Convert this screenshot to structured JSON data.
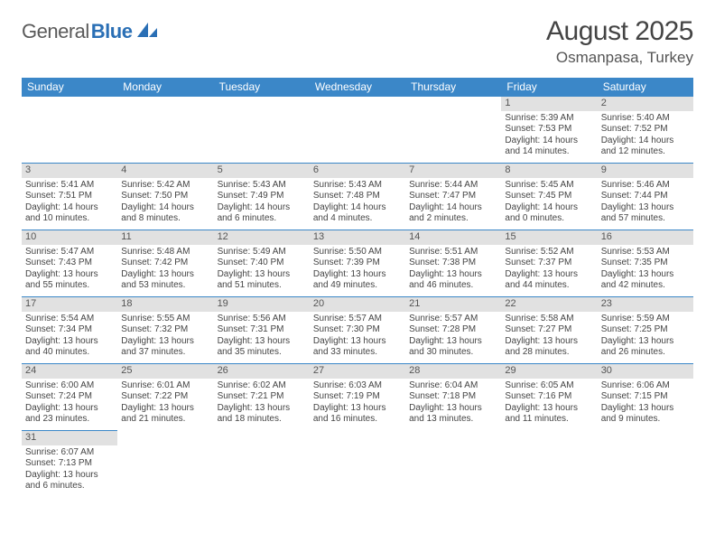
{
  "logo": {
    "part1": "General",
    "part2": "Blue"
  },
  "title": {
    "month": "August 2025",
    "location": "Osmanpasa, Turkey"
  },
  "colors": {
    "header_bg": "#3b87c8",
    "header_text": "#ffffff",
    "daynum_bg": "#e1e1e1",
    "border": "#3b87c8",
    "logo_gray": "#5a5a5a",
    "logo_blue": "#2a6fb5"
  },
  "weekdays": [
    "Sunday",
    "Monday",
    "Tuesday",
    "Wednesday",
    "Thursday",
    "Friday",
    "Saturday"
  ],
  "weeks": [
    [
      null,
      null,
      null,
      null,
      null,
      {
        "n": "1",
        "sr": "Sunrise: 5:39 AM",
        "ss": "Sunset: 7:53 PM",
        "d1": "Daylight: 14 hours",
        "d2": "and 14 minutes."
      },
      {
        "n": "2",
        "sr": "Sunrise: 5:40 AM",
        "ss": "Sunset: 7:52 PM",
        "d1": "Daylight: 14 hours",
        "d2": "and 12 minutes."
      }
    ],
    [
      {
        "n": "3",
        "sr": "Sunrise: 5:41 AM",
        "ss": "Sunset: 7:51 PM",
        "d1": "Daylight: 14 hours",
        "d2": "and 10 minutes."
      },
      {
        "n": "4",
        "sr": "Sunrise: 5:42 AM",
        "ss": "Sunset: 7:50 PM",
        "d1": "Daylight: 14 hours",
        "d2": "and 8 minutes."
      },
      {
        "n": "5",
        "sr": "Sunrise: 5:43 AM",
        "ss": "Sunset: 7:49 PM",
        "d1": "Daylight: 14 hours",
        "d2": "and 6 minutes."
      },
      {
        "n": "6",
        "sr": "Sunrise: 5:43 AM",
        "ss": "Sunset: 7:48 PM",
        "d1": "Daylight: 14 hours",
        "d2": "and 4 minutes."
      },
      {
        "n": "7",
        "sr": "Sunrise: 5:44 AM",
        "ss": "Sunset: 7:47 PM",
        "d1": "Daylight: 14 hours",
        "d2": "and 2 minutes."
      },
      {
        "n": "8",
        "sr": "Sunrise: 5:45 AM",
        "ss": "Sunset: 7:45 PM",
        "d1": "Daylight: 14 hours",
        "d2": "and 0 minutes."
      },
      {
        "n": "9",
        "sr": "Sunrise: 5:46 AM",
        "ss": "Sunset: 7:44 PM",
        "d1": "Daylight: 13 hours",
        "d2": "and 57 minutes."
      }
    ],
    [
      {
        "n": "10",
        "sr": "Sunrise: 5:47 AM",
        "ss": "Sunset: 7:43 PM",
        "d1": "Daylight: 13 hours",
        "d2": "and 55 minutes."
      },
      {
        "n": "11",
        "sr": "Sunrise: 5:48 AM",
        "ss": "Sunset: 7:42 PM",
        "d1": "Daylight: 13 hours",
        "d2": "and 53 minutes."
      },
      {
        "n": "12",
        "sr": "Sunrise: 5:49 AM",
        "ss": "Sunset: 7:40 PM",
        "d1": "Daylight: 13 hours",
        "d2": "and 51 minutes."
      },
      {
        "n": "13",
        "sr": "Sunrise: 5:50 AM",
        "ss": "Sunset: 7:39 PM",
        "d1": "Daylight: 13 hours",
        "d2": "and 49 minutes."
      },
      {
        "n": "14",
        "sr": "Sunrise: 5:51 AM",
        "ss": "Sunset: 7:38 PM",
        "d1": "Daylight: 13 hours",
        "d2": "and 46 minutes."
      },
      {
        "n": "15",
        "sr": "Sunrise: 5:52 AM",
        "ss": "Sunset: 7:37 PM",
        "d1": "Daylight: 13 hours",
        "d2": "and 44 minutes."
      },
      {
        "n": "16",
        "sr": "Sunrise: 5:53 AM",
        "ss": "Sunset: 7:35 PM",
        "d1": "Daylight: 13 hours",
        "d2": "and 42 minutes."
      }
    ],
    [
      {
        "n": "17",
        "sr": "Sunrise: 5:54 AM",
        "ss": "Sunset: 7:34 PM",
        "d1": "Daylight: 13 hours",
        "d2": "and 40 minutes."
      },
      {
        "n": "18",
        "sr": "Sunrise: 5:55 AM",
        "ss": "Sunset: 7:32 PM",
        "d1": "Daylight: 13 hours",
        "d2": "and 37 minutes."
      },
      {
        "n": "19",
        "sr": "Sunrise: 5:56 AM",
        "ss": "Sunset: 7:31 PM",
        "d1": "Daylight: 13 hours",
        "d2": "and 35 minutes."
      },
      {
        "n": "20",
        "sr": "Sunrise: 5:57 AM",
        "ss": "Sunset: 7:30 PM",
        "d1": "Daylight: 13 hours",
        "d2": "and 33 minutes."
      },
      {
        "n": "21",
        "sr": "Sunrise: 5:57 AM",
        "ss": "Sunset: 7:28 PM",
        "d1": "Daylight: 13 hours",
        "d2": "and 30 minutes."
      },
      {
        "n": "22",
        "sr": "Sunrise: 5:58 AM",
        "ss": "Sunset: 7:27 PM",
        "d1": "Daylight: 13 hours",
        "d2": "and 28 minutes."
      },
      {
        "n": "23",
        "sr": "Sunrise: 5:59 AM",
        "ss": "Sunset: 7:25 PM",
        "d1": "Daylight: 13 hours",
        "d2": "and 26 minutes."
      }
    ],
    [
      {
        "n": "24",
        "sr": "Sunrise: 6:00 AM",
        "ss": "Sunset: 7:24 PM",
        "d1": "Daylight: 13 hours",
        "d2": "and 23 minutes."
      },
      {
        "n": "25",
        "sr": "Sunrise: 6:01 AM",
        "ss": "Sunset: 7:22 PM",
        "d1": "Daylight: 13 hours",
        "d2": "and 21 minutes."
      },
      {
        "n": "26",
        "sr": "Sunrise: 6:02 AM",
        "ss": "Sunset: 7:21 PM",
        "d1": "Daylight: 13 hours",
        "d2": "and 18 minutes."
      },
      {
        "n": "27",
        "sr": "Sunrise: 6:03 AM",
        "ss": "Sunset: 7:19 PM",
        "d1": "Daylight: 13 hours",
        "d2": "and 16 minutes."
      },
      {
        "n": "28",
        "sr": "Sunrise: 6:04 AM",
        "ss": "Sunset: 7:18 PM",
        "d1": "Daylight: 13 hours",
        "d2": "and 13 minutes."
      },
      {
        "n": "29",
        "sr": "Sunrise: 6:05 AM",
        "ss": "Sunset: 7:16 PM",
        "d1": "Daylight: 13 hours",
        "d2": "and 11 minutes."
      },
      {
        "n": "30",
        "sr": "Sunrise: 6:06 AM",
        "ss": "Sunset: 7:15 PM",
        "d1": "Daylight: 13 hours",
        "d2": "and 9 minutes."
      }
    ],
    [
      {
        "n": "31",
        "sr": "Sunrise: 6:07 AM",
        "ss": "Sunset: 7:13 PM",
        "d1": "Daylight: 13 hours",
        "d2": "and 6 minutes."
      },
      null,
      null,
      null,
      null,
      null,
      null
    ]
  ]
}
